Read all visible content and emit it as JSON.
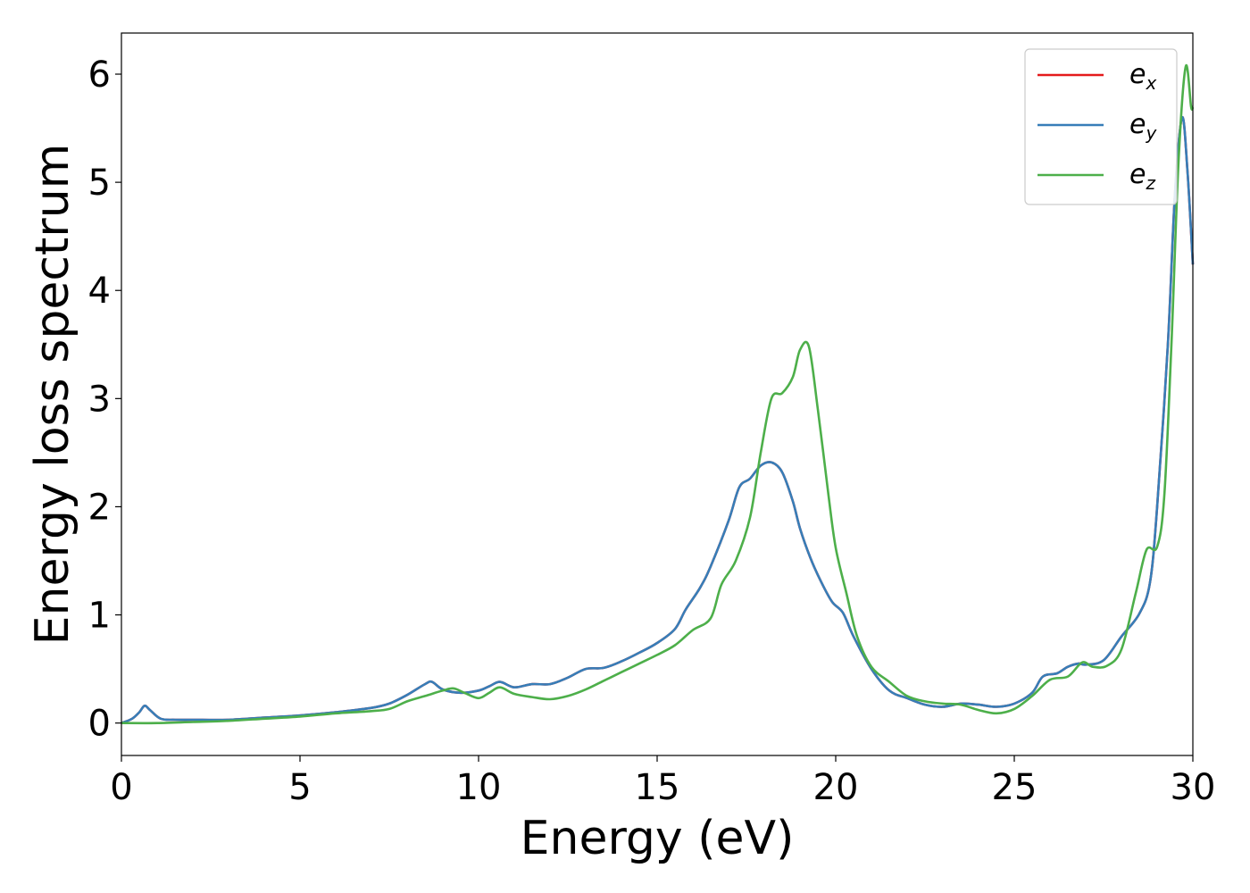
{
  "chart_data": {
    "type": "line",
    "title": "",
    "xlabel": "Energy (eV)",
    "ylabel": "Energy loss spectrum",
    "xlim": [
      0,
      30
    ],
    "ylim": [
      -0.3,
      6.38
    ],
    "xticks": [
      0,
      5,
      10,
      15,
      20,
      25,
      30
    ],
    "yticks": [
      0,
      1,
      2,
      3,
      4,
      5,
      6
    ],
    "xtick_labels": [
      "0",
      "5",
      "10",
      "15",
      "20",
      "25",
      "30"
    ],
    "ytick_labels": [
      "0",
      "1",
      "2",
      "3",
      "4",
      "5",
      "6"
    ],
    "grid": false,
    "legend_position": "top-right",
    "series": [
      {
        "name": "e_x",
        "label_main": "e",
        "label_sub": "x",
        "color": "#e41a1c",
        "x": [
          0,
          0.3,
          0.5,
          0.65,
          0.8,
          1.1,
          1.5,
          2,
          3,
          4,
          5,
          6,
          7,
          7.5,
          8,
          8.5,
          8.7,
          9,
          9.5,
          10,
          10.3,
          10.6,
          11,
          11.5,
          12,
          12.5,
          13,
          13.5,
          14,
          14.5,
          15,
          15.5,
          15.8,
          16.2,
          16.5,
          17,
          17.3,
          17.6,
          17.9,
          18.2,
          18.5,
          18.8,
          19,
          19.3,
          19.6,
          19.9,
          20.2,
          20.5,
          21,
          21.5,
          22,
          22.5,
          23,
          23.5,
          24,
          24.5,
          25,
          25.5,
          25.8,
          26.2,
          26.5,
          26.8,
          27,
          27.5,
          28,
          28.5,
          28.8,
          29,
          29.3,
          29.5,
          29.7,
          29.85,
          30
        ],
        "y": [
          0,
          0.04,
          0.1,
          0.16,
          0.12,
          0.04,
          0.03,
          0.03,
          0.03,
          0.05,
          0.07,
          0.1,
          0.14,
          0.18,
          0.26,
          0.36,
          0.38,
          0.31,
          0.28,
          0.3,
          0.34,
          0.38,
          0.33,
          0.36,
          0.36,
          0.42,
          0.5,
          0.51,
          0.57,
          0.65,
          0.74,
          0.87,
          1.05,
          1.25,
          1.45,
          1.87,
          2.18,
          2.26,
          2.38,
          2.41,
          2.32,
          2.05,
          1.8,
          1.52,
          1.3,
          1.12,
          1.02,
          0.8,
          0.5,
          0.3,
          0.23,
          0.17,
          0.15,
          0.18,
          0.17,
          0.15,
          0.18,
          0.28,
          0.43,
          0.46,
          0.52,
          0.55,
          0.54,
          0.58,
          0.8,
          1.01,
          1.3,
          2.0,
          3.5,
          4.9,
          5.6,
          5.1,
          4.24
        ]
      },
      {
        "name": "e_y",
        "label_main": "e",
        "label_sub": "y",
        "color": "#377eb8",
        "x": [
          0,
          0.3,
          0.5,
          0.65,
          0.8,
          1.1,
          1.5,
          2,
          3,
          4,
          5,
          6,
          7,
          7.5,
          8,
          8.5,
          8.7,
          9,
          9.5,
          10,
          10.3,
          10.6,
          11,
          11.5,
          12,
          12.5,
          13,
          13.5,
          14,
          14.5,
          15,
          15.5,
          15.8,
          16.2,
          16.5,
          17,
          17.3,
          17.6,
          17.9,
          18.2,
          18.5,
          18.8,
          19,
          19.3,
          19.6,
          19.9,
          20.2,
          20.5,
          21,
          21.5,
          22,
          22.5,
          23,
          23.5,
          24,
          24.5,
          25,
          25.5,
          25.8,
          26.2,
          26.5,
          26.8,
          27,
          27.5,
          28,
          28.5,
          28.8,
          29,
          29.3,
          29.5,
          29.7,
          29.85,
          30
        ],
        "y": [
          0,
          0.04,
          0.1,
          0.16,
          0.12,
          0.04,
          0.03,
          0.03,
          0.03,
          0.05,
          0.07,
          0.1,
          0.14,
          0.18,
          0.26,
          0.36,
          0.38,
          0.31,
          0.28,
          0.3,
          0.34,
          0.38,
          0.33,
          0.36,
          0.36,
          0.42,
          0.5,
          0.51,
          0.57,
          0.65,
          0.74,
          0.87,
          1.05,
          1.25,
          1.45,
          1.87,
          2.18,
          2.26,
          2.38,
          2.41,
          2.32,
          2.05,
          1.8,
          1.52,
          1.3,
          1.12,
          1.02,
          0.8,
          0.5,
          0.3,
          0.23,
          0.17,
          0.15,
          0.18,
          0.17,
          0.15,
          0.18,
          0.28,
          0.43,
          0.46,
          0.52,
          0.55,
          0.54,
          0.58,
          0.8,
          1.01,
          1.3,
          2.0,
          3.5,
          4.9,
          5.6,
          5.1,
          4.24
        ]
      },
      {
        "name": "e_z",
        "label_main": "e",
        "label_sub": "z",
        "color": "#4daf4a",
        "x": [
          0,
          1,
          2,
          3,
          4,
          5,
          6,
          7,
          7.5,
          8,
          8.5,
          9,
          9.3,
          9.6,
          10,
          10.3,
          10.6,
          11,
          11.5,
          12,
          12.5,
          13,
          13.5,
          14,
          14.5,
          15,
          15.5,
          16,
          16.5,
          16.8,
          17.2,
          17.6,
          17.9,
          18.2,
          18.5,
          18.8,
          19,
          19.25,
          19.5,
          19.8,
          20,
          20.3,
          20.6,
          21,
          21.5,
          22,
          22.5,
          23,
          23.5,
          24,
          24.5,
          25,
          25.5,
          26,
          26.5,
          26.9,
          27.2,
          27.6,
          28,
          28.4,
          28.7,
          29,
          29.2,
          29.4,
          29.6,
          29.8,
          29.95,
          30
        ],
        "y": [
          0,
          0,
          0.01,
          0.02,
          0.04,
          0.06,
          0.09,
          0.11,
          0.13,
          0.2,
          0.25,
          0.3,
          0.32,
          0.28,
          0.23,
          0.28,
          0.33,
          0.27,
          0.24,
          0.22,
          0.25,
          0.31,
          0.39,
          0.47,
          0.55,
          0.63,
          0.72,
          0.86,
          0.97,
          1.28,
          1.5,
          1.9,
          2.5,
          3.0,
          3.05,
          3.2,
          3.45,
          3.48,
          2.9,
          2.1,
          1.62,
          1.2,
          0.8,
          0.52,
          0.38,
          0.25,
          0.2,
          0.18,
          0.17,
          0.12,
          0.09,
          0.13,
          0.25,
          0.4,
          0.43,
          0.56,
          0.52,
          0.53,
          0.68,
          1.2,
          1.6,
          1.63,
          2.1,
          3.5,
          5.2,
          6.07,
          5.7,
          5.7
        ]
      }
    ]
  }
}
